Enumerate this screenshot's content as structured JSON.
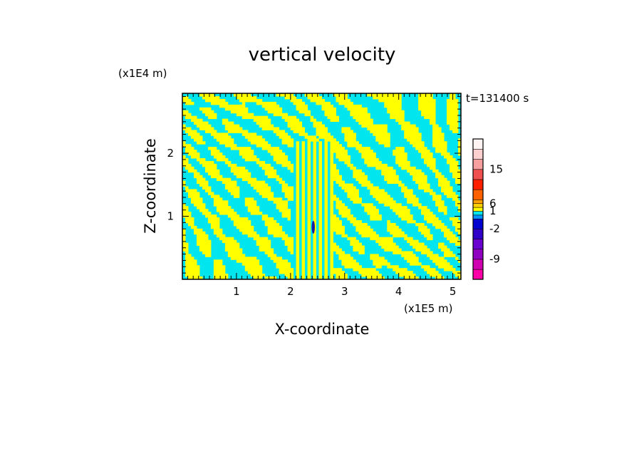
{
  "chart_data": {
    "type": "heatmap",
    "title": "vertical velocity",
    "xlabel": "X-coordinate",
    "ylabel": "Z-coordinate",
    "x_unit": "(x1E5 m)",
    "y_unit": "(x1E4 m)",
    "time_label": "t=131400 s",
    "xlim": [
      0,
      5.15
    ],
    "ylim": [
      0,
      2.95
    ],
    "x_ticks": [
      "1",
      "2",
      "3",
      "4",
      "5"
    ],
    "y_ticks": [
      "1",
      "2"
    ],
    "field_colors": {
      "positive": "#ffff00",
      "negative": "#00e5ee",
      "core": "#1a1aa0"
    },
    "colorbar": {
      "labels": [
        "15",
        "6",
        "1",
        "-2",
        "-9"
      ],
      "levels": [
        {
          "color": "#ff00a8"
        },
        {
          "color": "#d000b0"
        },
        {
          "color": "#9000c0"
        },
        {
          "color": "#6a00d0"
        },
        {
          "color": "#3000c8"
        },
        {
          "color": "#0000d0"
        },
        {
          "color": "#0090ff"
        },
        {
          "color": "#00e5ee"
        },
        {
          "color": "#ffff00"
        },
        {
          "color": "#ffd000"
        },
        {
          "color": "#ffa000"
        },
        {
          "color": "#ff6000"
        },
        {
          "color": "#ff2000"
        },
        {
          "color": "#f05050"
        },
        {
          "color": "#f8a0a0"
        },
        {
          "color": "#ffd0d0"
        },
        {
          "color": "#fff4f4"
        }
      ]
    }
  }
}
